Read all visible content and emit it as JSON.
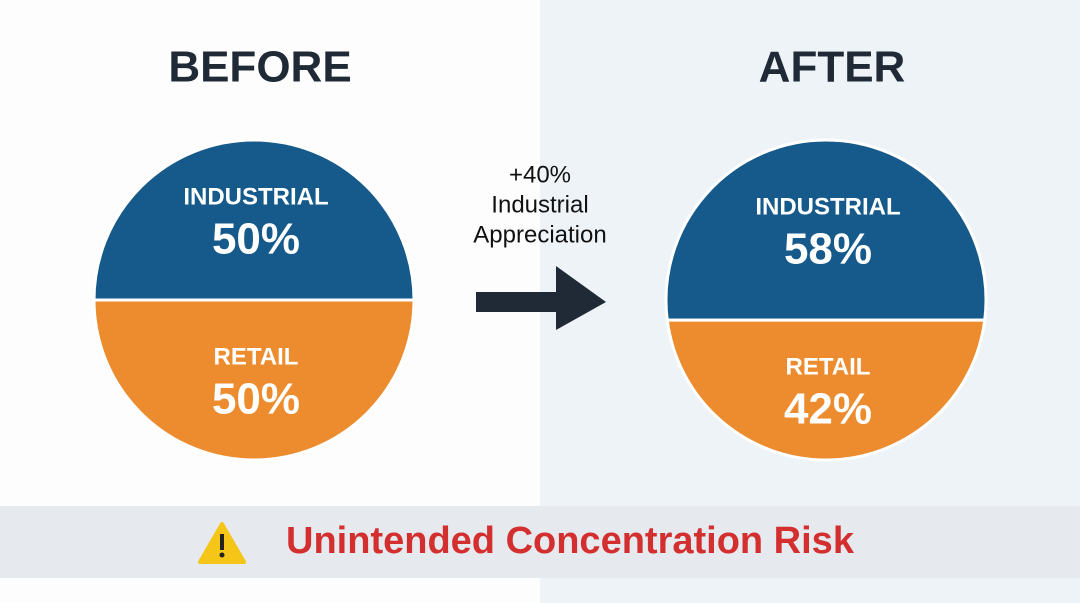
{
  "chart_data": [
    {
      "type": "pie",
      "title": "BEFORE",
      "categories": [
        "INDUSTRIAL",
        "RETAIL"
      ],
      "values": [
        50,
        50
      ],
      "value_labels": [
        "50%",
        "50%"
      ],
      "colors": [
        "#155a8a",
        "#ec8c2e"
      ]
    },
    {
      "type": "pie",
      "title": "AFTER",
      "categories": [
        "INDUSTRIAL",
        "RETAIL"
      ],
      "values": [
        58,
        42
      ],
      "value_labels": [
        "58%",
        "42%"
      ],
      "colors": [
        "#155a8a",
        "#ec8c2e"
      ]
    }
  ],
  "annotation": [
    "+40%",
    "Industrial",
    "Appreciation"
  ],
  "banner": "Unintended Concentration Risk"
}
